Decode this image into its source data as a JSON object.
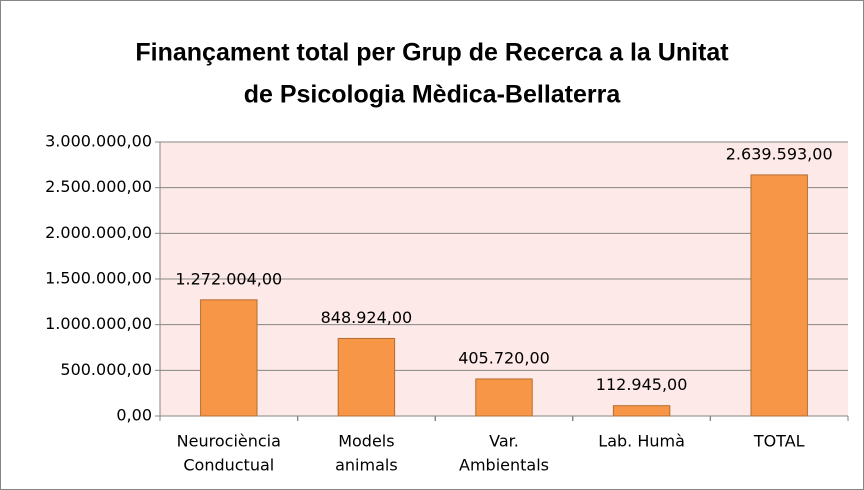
{
  "chart_data": {
    "type": "bar",
    "title": [
      "Finançament total per Grup de Recerca a la Unitat",
      "de Psicologia Mèdica-Bellaterra"
    ],
    "categories": [
      [
        "Neurociència",
        "Conductual"
      ],
      [
        "Models",
        "animals"
      ],
      [
        "Var.",
        "Ambientals"
      ],
      [
        "Lab. Humà"
      ],
      [
        "TOTAL"
      ]
    ],
    "values": [
      1272004,
      848924,
      405720,
      112945,
      2639593
    ],
    "value_labels": [
      "1.272.004,00",
      "848.924,00",
      "405.720,00",
      "112.945,00",
      "2.639.593,00"
    ],
    "color": "#f79646",
    "ylim": [
      0,
      3000000
    ],
    "yticks": [
      {
        "value": 0,
        "label": "0,00"
      },
      {
        "value": 500000,
        "label": "500.000,00"
      },
      {
        "value": 1000000,
        "label": "1.000.000,00"
      },
      {
        "value": 1500000,
        "label": "1.500.000,00"
      },
      {
        "value": 2000000,
        "label": "2.000.000,00"
      },
      {
        "value": 2500000,
        "label": "2.500.000,00"
      },
      {
        "value": 3000000,
        "label": "3.000.000,00"
      }
    ],
    "grid": true
  }
}
